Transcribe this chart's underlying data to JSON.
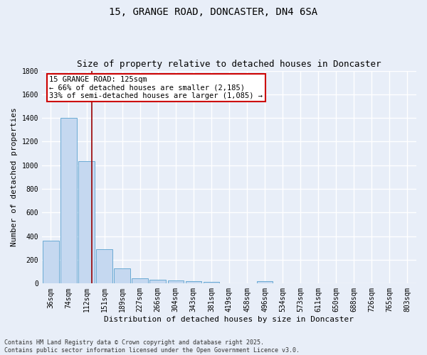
{
  "title1": "15, GRANGE ROAD, DONCASTER, DN4 6SA",
  "title2": "Size of property relative to detached houses in Doncaster",
  "xlabel": "Distribution of detached houses by size in Doncaster",
  "ylabel": "Number of detached properties",
  "categories": [
    "36sqm",
    "74sqm",
    "112sqm",
    "151sqm",
    "189sqm",
    "227sqm",
    "266sqm",
    "304sqm",
    "343sqm",
    "381sqm",
    "419sqm",
    "458sqm",
    "496sqm",
    "534sqm",
    "573sqm",
    "611sqm",
    "650sqm",
    "688sqm",
    "726sqm",
    "765sqm",
    "803sqm"
  ],
  "values": [
    360,
    1400,
    1035,
    290,
    130,
    42,
    35,
    25,
    18,
    14,
    0,
    0,
    18,
    0,
    0,
    0,
    0,
    0,
    0,
    0,
    0
  ],
  "bar_color": "#c5d8f0",
  "bar_edge_color": "#6aaad4",
  "vline_x_pos": 2.3,
  "vline_color": "#990000",
  "annotation_text": "15 GRANGE ROAD: 125sqm\n← 66% of detached houses are smaller (2,185)\n33% of semi-detached houses are larger (1,085) →",
  "annotation_box_color": "white",
  "annotation_box_edge": "#cc0000",
  "ylim": [
    0,
    1800
  ],
  "yticks": [
    0,
    200,
    400,
    600,
    800,
    1000,
    1200,
    1400,
    1600,
    1800
  ],
  "background_color": "#e8eef8",
  "grid_color": "#ffffff",
  "footer": "Contains HM Land Registry data © Crown copyright and database right 2025.\nContains public sector information licensed under the Open Government Licence v3.0.",
  "title_fontsize": 10,
  "subtitle_fontsize": 9,
  "tick_fontsize": 7,
  "ylabel_fontsize": 8,
  "xlabel_fontsize": 8,
  "annotation_fontsize": 7.5,
  "footer_fontsize": 6
}
